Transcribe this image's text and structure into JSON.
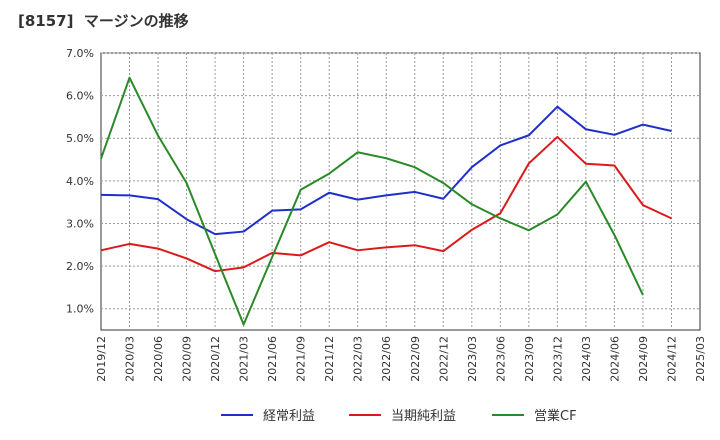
{
  "title": "[8157]  マージンの推移",
  "chart_data": {
    "type": "line",
    "title": "[8157]  マージンの推移",
    "xlabel": "",
    "ylabel": "",
    "categories": [
      "2019/12",
      "2020/03",
      "2020/06",
      "2020/09",
      "2020/12",
      "2021/03",
      "2021/06",
      "2021/09",
      "2021/12",
      "2022/03",
      "2022/06",
      "2022/09",
      "2022/12",
      "2023/03",
      "2023/06",
      "2023/09",
      "2023/12",
      "2024/03",
      "2024/06",
      "2024/09",
      "2024/12",
      "2025/03"
    ],
    "ylim": [
      0.5,
      7.0
    ],
    "yticks": [
      "1.0%",
      "2.0%",
      "3.0%",
      "4.0%",
      "5.0%",
      "6.0%",
      "7.0%"
    ],
    "grid": true,
    "legend_position": "bottom",
    "series": [
      {
        "name": "経常利益",
        "color": "#1f2fcc",
        "values": [
          3.67,
          3.66,
          3.57,
          3.1,
          2.75,
          2.81,
          3.3,
          3.33,
          3.72,
          3.56,
          3.66,
          3.74,
          3.58,
          4.32,
          4.83,
          5.07,
          5.74,
          5.21,
          5.08,
          5.32,
          5.17,
          null
        ]
      },
      {
        "name": "当期純利益",
        "color": "#dd1a1a",
        "values": [
          2.37,
          2.52,
          2.41,
          2.18,
          1.88,
          1.97,
          2.31,
          2.25,
          2.56,
          2.37,
          2.44,
          2.49,
          2.35,
          2.85,
          3.24,
          4.41,
          5.03,
          4.4,
          4.36,
          3.43,
          3.12,
          null
        ]
      },
      {
        "name": "営業CF",
        "color": "#2a8a2a",
        "values": [
          4.52,
          6.42,
          5.06,
          3.95,
          2.28,
          0.63,
          2.21,
          3.79,
          4.17,
          4.67,
          4.53,
          4.32,
          3.95,
          3.45,
          3.12,
          2.84,
          3.21,
          3.98,
          2.73,
          1.32,
          null,
          null
        ]
      }
    ]
  }
}
